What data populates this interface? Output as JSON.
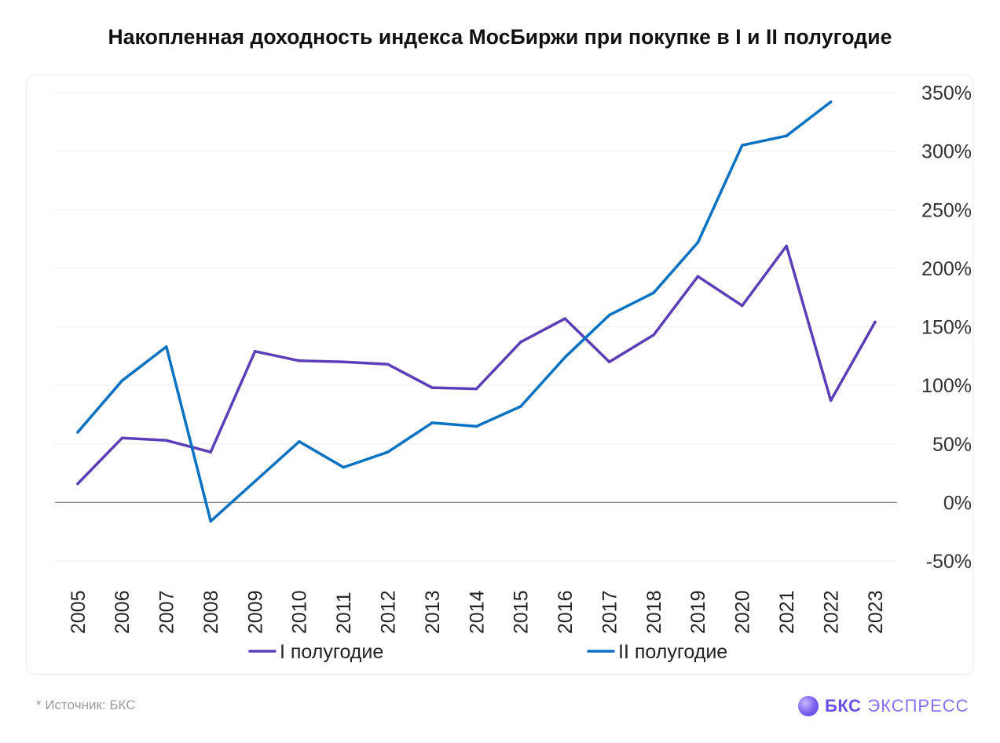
{
  "title": "Накопленная доходность индекса МосБиржи при покупке в I и II полугодие",
  "footer": {
    "source": "*  Источник: БКС",
    "brand_bold": "БКС",
    "brand_light": "ЭКСПРЕСС"
  },
  "chart_data": {
    "type": "line",
    "x": [
      "2005",
      "2006",
      "2007",
      "2008",
      "2009",
      "2010",
      "2011",
      "2012",
      "2013",
      "2014",
      "2015",
      "2016",
      "2017",
      "2018",
      "2019",
      "2020",
      "2021",
      "2022",
      "2023"
    ],
    "series": [
      {
        "name": "I полугодие",
        "color": "#5b3fb8",
        "values": [
          16,
          55,
          53,
          43,
          129,
          121,
          120,
          118,
          98,
          97,
          137,
          157,
          120,
          143,
          193,
          168,
          219,
          87,
          154
        ]
      },
      {
        "name": "II полугодие",
        "color": "#0a72c2",
        "values": [
          60,
          104,
          133,
          -16,
          18,
          52,
          30,
          43,
          68,
          65,
          82,
          124,
          160,
          179,
          222,
          305,
          313,
          342,
          null
        ]
      }
    ],
    "y_ticks": [
      "-50%",
      "0%",
      "50%",
      "100%",
      "150%",
      "200%",
      "250%",
      "300%",
      "350%"
    ],
    "y_tick_values": [
      -50,
      0,
      50,
      100,
      150,
      200,
      250,
      300,
      350
    ],
    "ylim": [
      -50,
      350
    ],
    "yaxis_position": "right",
    "grid": true,
    "legend_position": "bottom"
  }
}
